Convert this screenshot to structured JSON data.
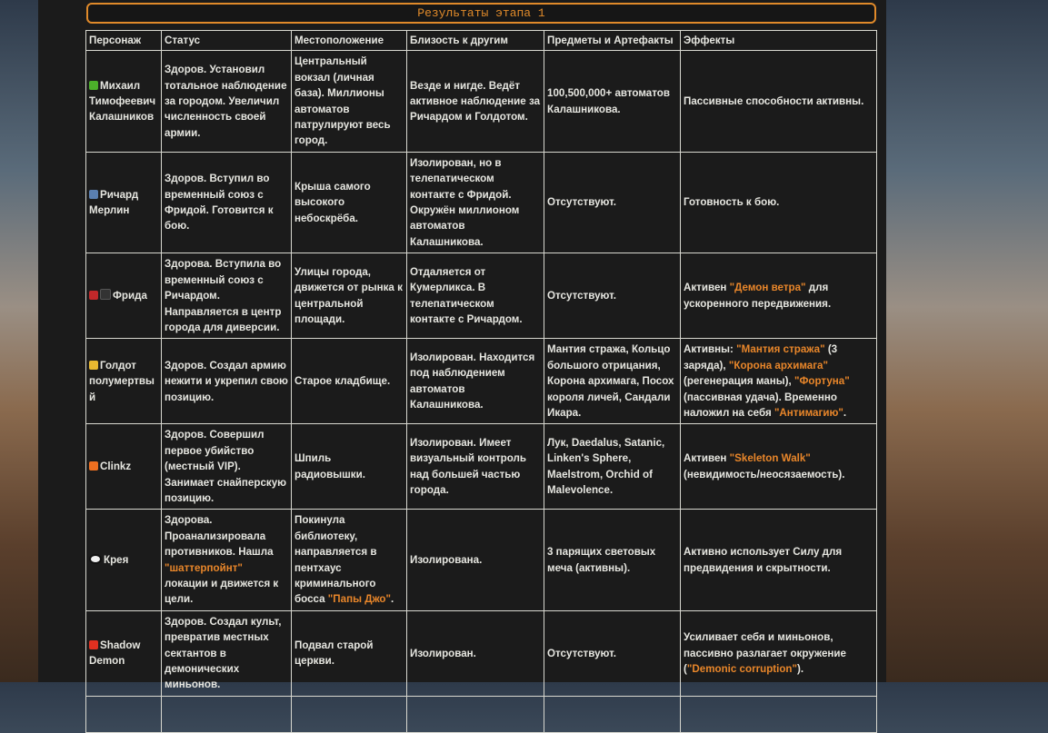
{
  "title": "Результаты этапа 1",
  "headers": [
    "Персонаж",
    "Статус",
    "Местоположение",
    "Близость к другим",
    "Предметы и Артефакты",
    "Эффекты"
  ],
  "rows": [
    {
      "icon": "gun-icon",
      "icon_color": "#4caf2a",
      "name": "Михаил Тимофеевич Калашников",
      "cells": [
        [
          {
            "t": "Здоров. Установил тотальное наблюдение за городом. Увеличил численность своей армии."
          }
        ],
        [
          {
            "t": "Центральный вокзал (личная база). Миллионы автоматов патрулируют весь город."
          }
        ],
        [
          {
            "t": "Везде и нигде. Ведёт активное наблюдение за Ричардом и Голдотом."
          }
        ],
        [
          {
            "t": "100,500,000+ автоматов Калашникова."
          }
        ],
        [
          {
            "t": "Пассивные способности активны."
          }
        ]
      ]
    },
    {
      "icon": "mage-icon",
      "icon_color": "#5a7fb0",
      "name": "Ричард Мерлин",
      "cells": [
        [
          {
            "t": "Здоров. Вступил во временный союз с Фридой. Готовится к бою."
          }
        ],
        [
          {
            "t": "Крыша самого высокого небоскрёба."
          }
        ],
        [
          {
            "t": "Изолирован, но в телепатическом контакте с Фридой. Окружён миллионом автоматов Калашникова."
          }
        ],
        [
          {
            "t": "Отсутствуют."
          }
        ],
        [
          {
            "t": "Готовность к бою."
          }
        ]
      ]
    },
    {
      "icon": "bird-icon",
      "icon_color": "#c0282a",
      "icon2_color": "#333333",
      "name": "Фрида",
      "cells": [
        [
          {
            "t": "Здорова. Вступила во временный союз с Ричардом. Направляется в центр города для диверсии."
          }
        ],
        [
          {
            "t": "Улицы города, движется от рынка к центральной площади."
          }
        ],
        [
          {
            "t": "Отдаляется от Кумерликса. В телепатическом контакте с Ричардом."
          }
        ],
        [
          {
            "t": "Отсутствуют."
          }
        ],
        [
          {
            "t": "Активен "
          },
          {
            "t": "\"Демон ветра\"",
            "hl": true
          },
          {
            "t": " для ускоренного передвижения."
          }
        ]
      ]
    },
    {
      "icon": "crown-icon",
      "icon_color": "#e8b830",
      "name": "Голдот полумертвый",
      "cells": [
        [
          {
            "t": "Здоров. Создал армию нежити и укрепил свою позицию."
          }
        ],
        [
          {
            "t": "Старое кладбище."
          }
        ],
        [
          {
            "t": "Изолирован. Находится под наблюдением автоматов Калашникова."
          }
        ],
        [
          {
            "t": "Мантия стража, Кольцо большого отрицания, Корона архимага, Посох короля личей, Сандали Икара."
          }
        ],
        [
          {
            "t": "Активны: "
          },
          {
            "t": "\"Мантия стража\"",
            "hl": true
          },
          {
            "t": " (3 заряда), "
          },
          {
            "t": "\"Корона архимага\"",
            "hl": true
          },
          {
            "t": " (регенерация маны), "
          },
          {
            "t": "\"Фортуна\"",
            "hl": true
          },
          {
            "t": " (пассивная удача). Временно наложил на себя "
          },
          {
            "t": "\"Антимагию\"",
            "hl": true
          },
          {
            "t": "."
          }
        ]
      ]
    },
    {
      "icon": "fire-icon",
      "icon_color": "#f07020",
      "name": "Clinkz",
      "cells": [
        [
          {
            "t": "Здоров. Совершил первое убийство (местный VIP). Занимает снайперскую позицию."
          }
        ],
        [
          {
            "t": "Шпиль радиовышки."
          }
        ],
        [
          {
            "t": "Изолирован. Имеет визуальный контроль над большей частью города."
          }
        ],
        [
          {
            "t": "Лук, Daedalus, Satanic, Linken's Sphere, Maelstrom, Orchid of Malevolence."
          }
        ],
        [
          {
            "t": "Активен "
          },
          {
            "t": "\"Skeleton Walk\"",
            "hl": true
          },
          {
            "t": " (невидимость/неосязаемость)."
          }
        ]
      ]
    },
    {
      "icon": "eye-icon",
      "icon_color": "#f0f0f0",
      "name": "Крея",
      "cells": [
        [
          {
            "t": "Здорова. Проанализировала противников. Нашла "
          },
          {
            "t": "\"шаттерпойнт\"",
            "hl": true
          },
          {
            "t": " локации и движется к цели."
          }
        ],
        [
          {
            "t": "Покинула библиотеку, направляется в пентхаус криминального босса "
          },
          {
            "t": "\"Папы Джо\"",
            "hl": true
          },
          {
            "t": "."
          }
        ],
        [
          {
            "t": "Изолирована."
          }
        ],
        [
          {
            "t": "3 парящих световых меча (активны)."
          }
        ],
        [
          {
            "t": "Активно использует Силу для предвидения и скрытности."
          }
        ]
      ]
    },
    {
      "icon": "devil-icon",
      "icon_color": "#e03020",
      "name": "Shadow Demon",
      "cells": [
        [
          {
            "t": "Здоров. Создал культ, превратив местных сектантов в демонических миньонов."
          }
        ],
        [
          {
            "t": "Подвал старой церкви."
          }
        ],
        [
          {
            "t": "Изолирован."
          }
        ],
        [
          {
            "t": "Отсутствуют."
          }
        ],
        [
          {
            "t": "Усиливает себя и миньонов, пассивно разлагает окружение ("
          },
          {
            "t": "\"Demonic corruption\"",
            "hl": true
          },
          {
            "t": ")."
          }
        ]
      ]
    }
  ]
}
